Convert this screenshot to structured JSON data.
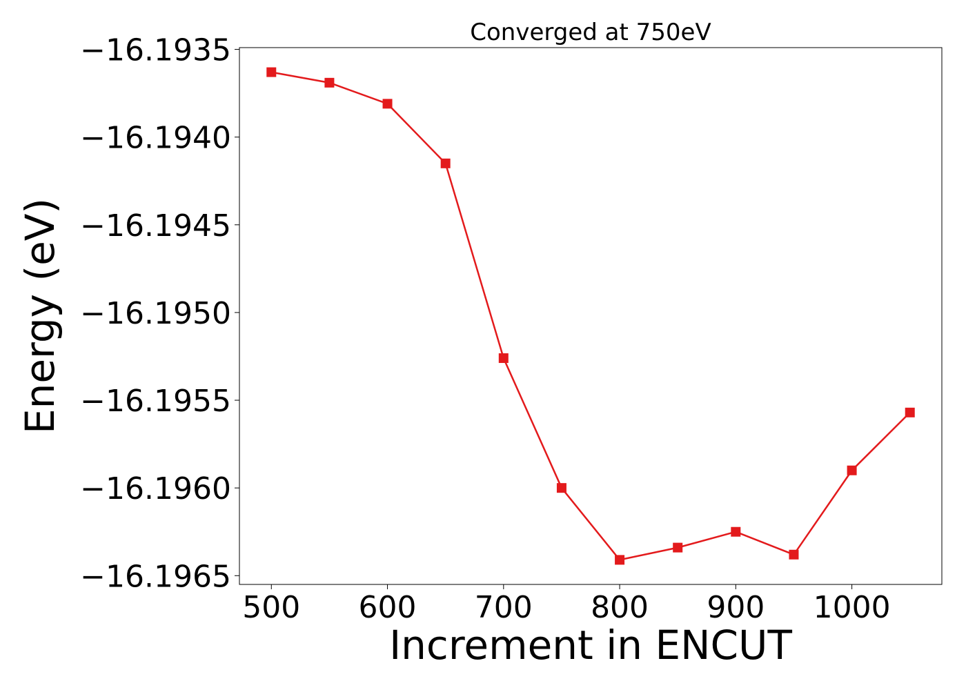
{
  "chart_data": {
    "type": "line",
    "title": "Converged at 750eV",
    "xlabel": "Increment in ENCUT",
    "ylabel": "Energy (eV)",
    "x": [
      500,
      550,
      600,
      650,
      700,
      750,
      800,
      850,
      900,
      950,
      1000,
      1050
    ],
    "series": [
      {
        "values": [
          -16.19363,
          -16.19369,
          -16.19381,
          -16.19415,
          -16.19526,
          -16.196,
          -16.19641,
          -16.19634,
          -16.19625,
          -16.19638,
          -16.1959,
          -16.19557
        ],
        "color": "#e31a1c",
        "marker": "square"
      }
    ],
    "xlim": [
      472.5,
      1077.5
    ],
    "ylim": [
      -16.19655,
      -16.19349
    ],
    "xticks": [
      500,
      600,
      700,
      800,
      900,
      1000
    ],
    "xtick_labels": [
      "500",
      "600",
      "700",
      "800",
      "900",
      "1000"
    ],
    "yticks": [
      -16.1935,
      -16.194,
      -16.1945,
      -16.195,
      -16.1955,
      -16.196,
      -16.1965
    ],
    "ytick_labels": [
      "−16.1935",
      "−16.1940",
      "−16.1945",
      "−16.1950",
      "−16.1955",
      "−16.1960",
      "−16.1965"
    ],
    "grid": false,
    "legend": "none"
  }
}
